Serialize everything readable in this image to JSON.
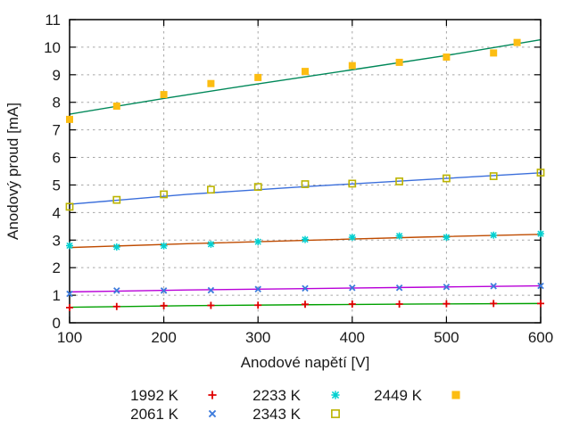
{
  "figure": {
    "background": "#ffffff",
    "frame_color": "#000000",
    "grid_color": "#a6a6a6",
    "text_color": "#1a1a1a"
  },
  "chart_data": {
    "type": "scatter",
    "title": "",
    "xlabel": "Anodové napětí [V]",
    "ylabel": "Anodový proud [mA]",
    "xlim": [
      100,
      600
    ],
    "ylim": [
      0,
      11
    ],
    "x_ticks": [
      100,
      200,
      300,
      400,
      500,
      600
    ],
    "y_ticks": [
      0,
      1,
      2,
      3,
      4,
      5,
      6,
      7,
      8,
      9,
      10,
      11
    ],
    "grid": true,
    "series": [
      {
        "name": "1992 K",
        "marker": "plus",
        "color": "#e00000",
        "fit_color": "#00a000",
        "points": [
          [
            100,
            0.55
          ],
          [
            150,
            0.59
          ],
          [
            200,
            0.62
          ],
          [
            250,
            0.63
          ],
          [
            300,
            0.64
          ],
          [
            350,
            0.67
          ],
          [
            400,
            0.68
          ],
          [
            450,
            0.68
          ],
          [
            500,
            0.69
          ],
          [
            550,
            0.7
          ],
          [
            600,
            0.7
          ]
        ],
        "fit_line": [
          [
            100,
            0.565
          ],
          [
            225,
            0.62
          ],
          [
            350,
            0.655
          ],
          [
            475,
            0.68
          ],
          [
            600,
            0.7
          ]
        ]
      },
      {
        "name": "2061 K",
        "marker": "cross",
        "color": "#3d7bdc",
        "fit_color": "#b800d8",
        "points": [
          [
            100,
            1.05
          ],
          [
            150,
            1.17
          ],
          [
            200,
            1.17
          ],
          [
            250,
            1.18
          ],
          [
            300,
            1.22
          ],
          [
            350,
            1.25
          ],
          [
            400,
            1.27
          ],
          [
            450,
            1.27
          ],
          [
            500,
            1.3
          ],
          [
            550,
            1.33
          ],
          [
            600,
            1.34
          ]
        ],
        "fit_line": [
          [
            100,
            1.12
          ],
          [
            225,
            1.19
          ],
          [
            350,
            1.24
          ],
          [
            475,
            1.29
          ],
          [
            600,
            1.34
          ]
        ]
      },
      {
        "name": "2233 K",
        "marker": "asterisk",
        "color": "#00d0d0",
        "fit_color": "#bf4b00",
        "points": [
          [
            100,
            2.8
          ],
          [
            150,
            2.75
          ],
          [
            200,
            2.79
          ],
          [
            250,
            2.85
          ],
          [
            300,
            2.94
          ],
          [
            350,
            3.02
          ],
          [
            400,
            3.1
          ],
          [
            450,
            3.15
          ],
          [
            500,
            3.1
          ],
          [
            550,
            3.18
          ],
          [
            600,
            3.23
          ]
        ],
        "fit_line": [
          [
            100,
            2.73
          ],
          [
            225,
            2.87
          ],
          [
            350,
            2.99
          ],
          [
            475,
            3.11
          ],
          [
            600,
            3.21
          ]
        ]
      },
      {
        "name": "2343 K",
        "marker": "square-open",
        "color": "#bcb400",
        "fit_color": "#3a6edb",
        "points": [
          [
            100,
            4.21
          ],
          [
            150,
            4.46
          ],
          [
            200,
            4.66
          ],
          [
            250,
            4.83
          ],
          [
            300,
            4.93
          ],
          [
            350,
            5.03
          ],
          [
            400,
            5.05
          ],
          [
            450,
            5.13
          ],
          [
            500,
            5.24
          ],
          [
            550,
            5.32
          ],
          [
            600,
            5.45
          ]
        ],
        "fit_line": [
          [
            100,
            4.3
          ],
          [
            225,
            4.66
          ],
          [
            350,
            4.94
          ],
          [
            475,
            5.19
          ],
          [
            600,
            5.44
          ]
        ]
      },
      {
        "name": "2449 K",
        "marker": "square-filled",
        "color": "#fcbd12",
        "fit_color": "#008859",
        "points": [
          [
            100,
            7.38
          ],
          [
            150,
            7.86
          ],
          [
            200,
            8.28
          ],
          [
            250,
            8.68
          ],
          [
            300,
            8.9
          ],
          [
            350,
            9.12
          ],
          [
            400,
            9.33
          ],
          [
            450,
            9.45
          ],
          [
            500,
            9.64
          ],
          [
            550,
            9.79
          ],
          [
            575,
            10.17
          ]
        ],
        "fit_line": [
          [
            100,
            7.57
          ],
          [
            200,
            8.14
          ],
          [
            300,
            8.67
          ],
          [
            400,
            9.18
          ],
          [
            500,
            9.7
          ],
          [
            600,
            10.27
          ]
        ]
      }
    ],
    "legend": {
      "position": "below-chart",
      "columns": [
        {
          "items": [
            {
              "label": "1992 K",
              "series": 0
            },
            {
              "label": "2061 K",
              "series": 1
            }
          ]
        },
        {
          "items": [
            {
              "label": "2233 K",
              "series": 2
            },
            {
              "label": "2343 K",
              "series": 3
            }
          ]
        },
        {
          "items": [
            {
              "label": "2449 K",
              "series": 4
            }
          ]
        }
      ]
    }
  }
}
